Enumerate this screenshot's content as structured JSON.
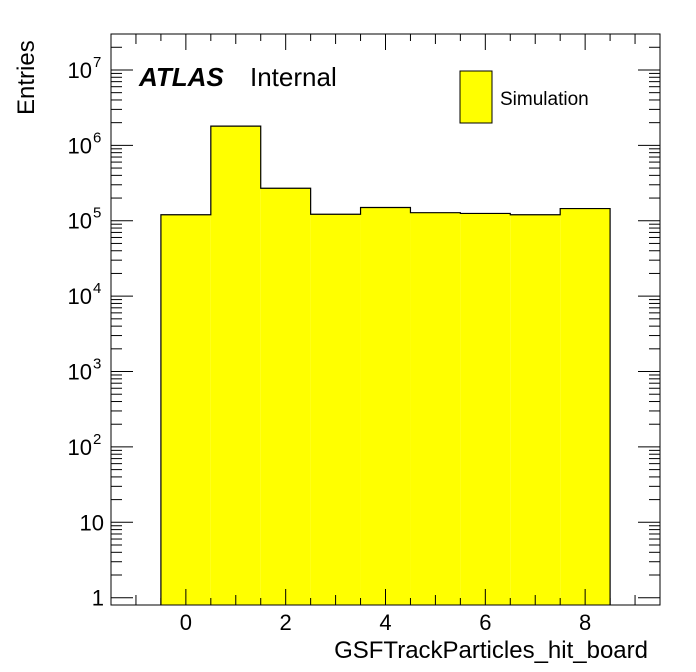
{
  "chart_data": {
    "type": "bar",
    "categories": [
      "0",
      "1",
      "2",
      "3",
      "4",
      "5",
      "6",
      "7",
      "8"
    ],
    "series": [
      {
        "name": "Simulation",
        "values": [
          120000,
          1800000,
          270000,
          122000,
          150000,
          128000,
          125000,
          120000,
          145000
        ]
      }
    ],
    "xlabel": "GSFTrackParticles_hit_board",
    "ylabel": "Entries",
    "xlim": [
      -1.5,
      9.5
    ],
    "ylim": [
      0.8,
      30000000
    ],
    "y_scale": "log",
    "x_ticks": [
      "0",
      "2",
      "4",
      "6",
      "8"
    ],
    "y_ticks": [
      {
        "base": "1",
        "exp": ""
      },
      {
        "base": "10",
        "exp": ""
      },
      {
        "base": "10",
        "exp": "2"
      },
      {
        "base": "10",
        "exp": "3"
      },
      {
        "base": "10",
        "exp": "4"
      },
      {
        "base": "10",
        "exp": "5"
      },
      {
        "base": "10",
        "exp": "6"
      },
      {
        "base": "10",
        "exp": "7"
      }
    ],
    "fill_color": "#ffff00",
    "line_color": "#000000",
    "grid": false,
    "legend_position": "top-right",
    "atlas_label": "ATLAS",
    "atlas_status": "Internal"
  }
}
